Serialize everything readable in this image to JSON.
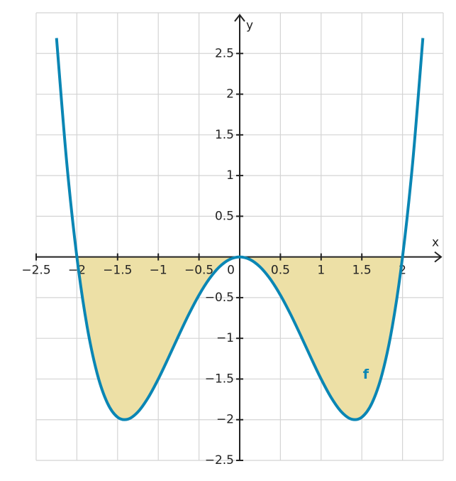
{
  "chart_data": {
    "type": "line",
    "x_label": "x",
    "y_label": "y",
    "x": [
      -2.25,
      -2.125,
      -2,
      -1.875,
      -1.75,
      -1.625,
      -1.5,
      -1.375,
      -1.25,
      -1.125,
      -1,
      -0.875,
      -0.75,
      -0.625,
      -0.5,
      -0.375,
      -0.25,
      -0.125,
      0,
      0.125,
      0.25,
      0.375,
      0.5,
      0.625,
      0.75,
      0.875,
      1,
      1.125,
      1.25,
      1.375,
      1.5,
      1.625,
      1.75,
      1.875,
      2,
      2.125,
      2.25
    ],
    "series": [
      {
        "name": "f",
        "color": "#0a86b4",
        "values": [
          2.6895,
          1.1642,
          0,
          -0.8514,
          -1.4355,
          -1.7948,
          -1.9688,
          -1.994,
          -1.9043,
          -1.7303,
          -1.5,
          -1.2381,
          -0.9668,
          -0.705,
          -0.4688,
          -0.2714,
          -0.123,
          -0.0311,
          0,
          -0.0311,
          -0.123,
          -0.2714,
          -0.4688,
          -0.705,
          -0.9668,
          -1.2381,
          -1.5,
          -1.7303,
          -1.9043,
          -1.994,
          -1.9688,
          -1.7948,
          -1.4355,
          -0.8514,
          0,
          1.1642,
          2.6895
        ]
      }
    ],
    "shade": {
      "from": -2,
      "to": 2,
      "color": "#ede0a6"
    },
    "label_position": [
      1.55,
      -1.45
    ],
    "xlim": [
      -2.5,
      2.5
    ],
    "ylim": [
      -2.5,
      3
    ],
    "xticks": [
      {
        "value": -2.5,
        "label": "−2.5"
      },
      {
        "value": -2,
        "label": "−2"
      },
      {
        "value": -1.5,
        "label": "−1.5"
      },
      {
        "value": -1,
        "label": "−1"
      },
      {
        "value": -0.5,
        "label": "−0.5"
      },
      0,
      0.5,
      1,
      1.5,
      2
    ],
    "yticks": [
      {
        "value": -2.5,
        "label": "−2.5"
      },
      {
        "value": -2,
        "label": "−2"
      },
      {
        "value": -1.5,
        "label": "−1.5"
      },
      {
        "value": -1,
        "label": "−1"
      },
      {
        "value": -0.5,
        "label": "−0.5"
      },
      0.5,
      1,
      1.5,
      2,
      2.5
    ],
    "grid": true
  }
}
